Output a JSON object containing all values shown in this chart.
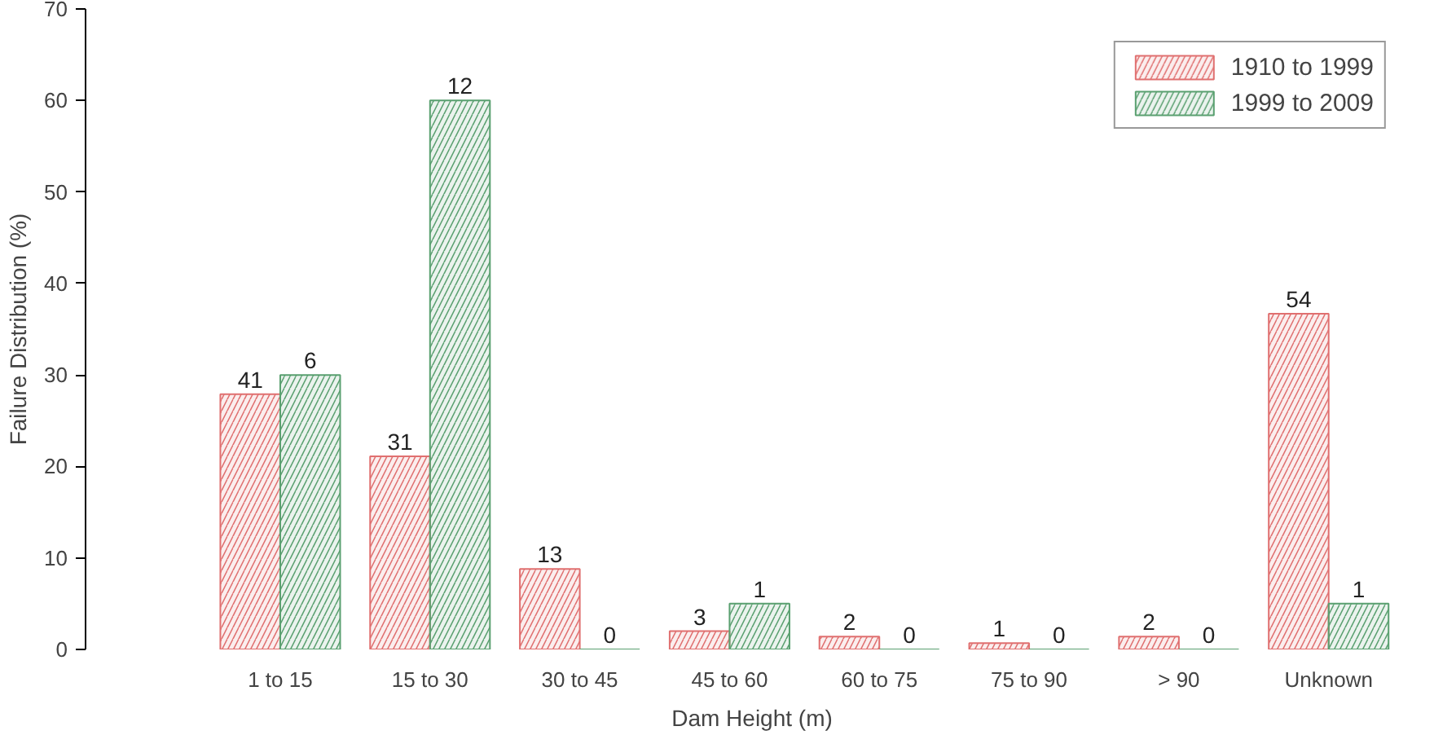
{
  "chart_data": {
    "type": "bar",
    "xlabel": "Dam Height (m)",
    "ylabel": "Failure Distribution (%)",
    "categories": [
      "1 to 15",
      "15 to 30",
      "30 to 45",
      "45 to 60",
      "60 to 75",
      "75 to 90",
      "> 90",
      "Unknown"
    ],
    "series": [
      {
        "name": "1910 to 1999",
        "color": "#e07070",
        "values": [
          27.9,
          21.1,
          8.8,
          2.0,
          1.4,
          0.7,
          1.4,
          36.7
        ]
      },
      {
        "name": "1999 to 2009",
        "color": "#5aa070",
        "values": [
          30,
          60,
          0,
          5,
          0,
          0,
          0,
          5
        ]
      }
    ],
    "annotations": [
      {
        "text": "41",
        "x": "1 to 15",
        "y": 27.9
      },
      {
        "text": "31",
        "x": "15 to 30",
        "y": 21.1
      },
      {
        "text": "13",
        "x": "30 to 45",
        "y": 8.8
      },
      {
        "text": "3",
        "x": "45 to 60",
        "y": 2.0
      },
      {
        "text": "2",
        "x": "60 to 75",
        "y": 1.4
      },
      {
        "text": "1",
        "x": "75 to 90",
        "y": 0.7
      },
      {
        "text": "2",
        "x": "> 90",
        "y": 1.4
      },
      {
        "text": "54",
        "x": "Unknown",
        "y": 36.7
      },
      {
        "text": "6",
        "x": "1 to 15",
        "y": 30
      },
      {
        "text": "12",
        "x": "15 to 30",
        "y": 60
      },
      {
        "text": "0",
        "x": "30 to 45",
        "y": 0
      },
      {
        "text": "1",
        "x": "45 to 60",
        "y": 5
      },
      {
        "text": "0",
        "x": "60 to 75",
        "y": 0
      },
      {
        "text": "0",
        "x": "75 to 90",
        "y": 0
      },
      {
        "text": "0",
        "x": "> 90",
        "y": 0
      },
      {
        "text": "1",
        "x": "Unknown",
        "y": 5
      }
    ],
    "ylim": [
      0,
      70
    ],
    "yticks": [
      0,
      10,
      20,
      30,
      40,
      50,
      60,
      70
    ],
    "grid": false,
    "legend": "top right"
  }
}
